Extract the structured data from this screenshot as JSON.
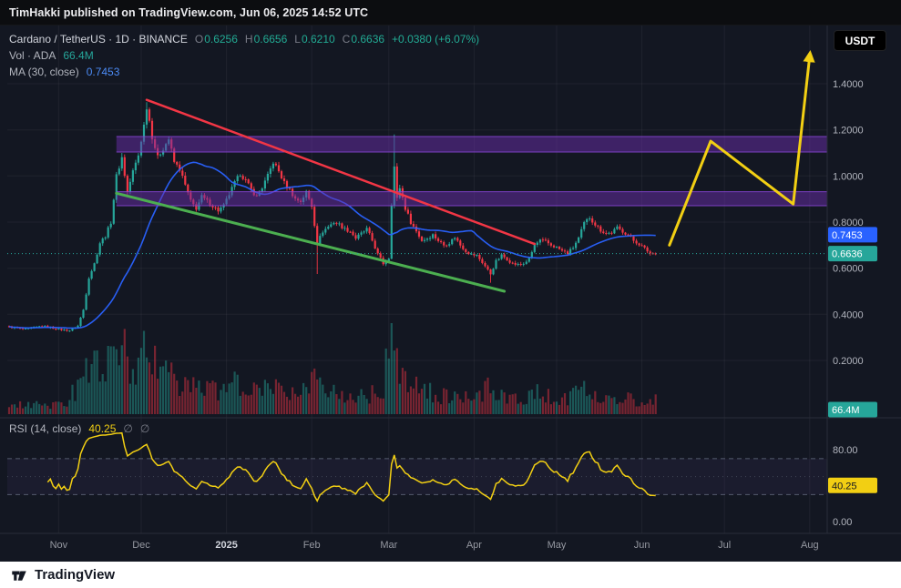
{
  "header": {
    "publisher_line": "TimHakki published on TradingView.com, Jun 06, 2025 14:52 UTC"
  },
  "toolbar": {
    "currency_button": "USDT"
  },
  "footer": {
    "brand": "TradingView"
  },
  "legend": {
    "symbol_line": "Cardano / TetherUS · 1D · BINANCE",
    "ohlc": {
      "o_label": "O",
      "o": "0.6256",
      "h_label": "H",
      "h": "0.6656",
      "l_label": "L",
      "l": "0.6210",
      "c_label": "C",
      "c": "0.6636",
      "change": "+0.0380 (+6.07%)"
    },
    "volume_label": "Vol · ADA",
    "volume_value": "66.4M",
    "ma_label": "MA (30, close)",
    "ma_value": "0.7453"
  },
  "rsi_legend": {
    "label": "RSI (14, close)",
    "value": "40.25",
    "empty_a": "∅",
    "empty_b": "∅"
  },
  "axis": {
    "badges": {
      "ma": "0.7453",
      "last": "0.6636",
      "volume": "66.4M",
      "rsi": "40.25"
    }
  },
  "colors": {
    "up": "#26a69a",
    "down": "#f23645",
    "ma_line": "#2962ff",
    "band_fill": "rgba(106,46,170,0.5)",
    "band_border": "#8b46d9",
    "projection_yellow": "#f2cf13",
    "rsi_line": "#f2cf13",
    "last_line": "#26a69a",
    "badge_ma_bg": "#2962ff",
    "badge_last_bg": "#26a69a",
    "badge_vol_bg": "#26a69a",
    "badge_rsi_bg": "#f2cf13",
    "grid": "rgba(135,139,150,0.10)",
    "axis_text": "#b2b5be",
    "month_text": "#9598a1",
    "year_text": "#d1d4dc",
    "rsi_guide": "#565b6e",
    "rsi_mid": "#3f4454",
    "rsi_zone": "rgba(126,87,194,0.08)",
    "sep": "#2a2e39"
  },
  "chart_data": {
    "type": "candlestick",
    "symbol": "Cardano / TetherUS",
    "interval": "1D",
    "exchange": "BINANCE",
    "ohlc_display": {
      "open": 0.6256,
      "high": 0.6656,
      "low": 0.621,
      "close": 0.6636,
      "change_abs": 0.038,
      "change_pct": 6.07
    },
    "last_price": 0.6636,
    "ma30_value": 0.7453,
    "rsi_value": 40.25,
    "volume_display": "66.4M",
    "ma_period": 30,
    "rsi_period": 14,
    "ylim": [
      0.2,
      1.66
    ],
    "price_gridlines": [
      0.2,
      0.4,
      0.6,
      0.8,
      1.0,
      1.2,
      1.4
    ],
    "candle_count": 236,
    "price_path": [
      [
        0,
        0.345
      ],
      [
        6,
        0.335
      ],
      [
        12,
        0.35
      ],
      [
        18,
        0.335
      ],
      [
        22,
        0.33
      ],
      [
        25,
        0.35
      ],
      [
        27,
        0.42
      ],
      [
        29,
        0.56
      ],
      [
        31,
        0.62
      ],
      [
        33,
        0.71
      ],
      [
        35,
        0.74
      ],
      [
        37,
        0.8
      ],
      [
        39,
        1.0
      ],
      [
        41,
        1.08
      ],
      [
        43,
        0.93
      ],
      [
        45,
        1.02
      ],
      [
        47,
        1.09
      ],
      [
        49,
        1.22
      ],
      [
        50,
        1.3
      ],
      [
        51,
        1.24
      ],
      [
        52,
        1.17
      ],
      [
        54,
        1.08
      ],
      [
        56,
        1.12
      ],
      [
        58,
        1.16
      ],
      [
        60,
        1.06
      ],
      [
        62,
        1.03
      ],
      [
        64,
        0.96
      ],
      [
        66,
        0.89
      ],
      [
        68,
        0.86
      ],
      [
        70,
        0.91
      ],
      [
        72,
        0.89
      ],
      [
        74,
        0.87
      ],
      [
        76,
        0.85
      ],
      [
        78,
        0.87
      ],
      [
        80,
        0.92
      ],
      [
        82,
        0.97
      ],
      [
        84,
        1.01
      ],
      [
        86,
        0.98
      ],
      [
        88,
        0.94
      ],
      [
        90,
        0.91
      ],
      [
        92,
        0.95
      ],
      [
        94,
        1.0
      ],
      [
        96,
        1.06
      ],
      [
        98,
        1.02
      ],
      [
        100,
        0.97
      ],
      [
        102,
        0.94
      ],
      [
        104,
        0.9
      ],
      [
        106,
        0.89
      ],
      [
        108,
        0.93
      ],
      [
        110,
        0.87
      ],
      [
        112,
        0.71
      ],
      [
        114,
        0.76
      ],
      [
        116,
        0.78
      ],
      [
        118,
        0.8
      ],
      [
        120,
        0.79
      ],
      [
        122,
        0.77
      ],
      [
        124,
        0.76
      ],
      [
        126,
        0.73
      ],
      [
        128,
        0.75
      ],
      [
        130,
        0.77
      ],
      [
        132,
        0.72
      ],
      [
        134,
        0.66
      ],
      [
        136,
        0.62
      ],
      [
        138,
        0.645
      ],
      [
        139,
        0.88
      ],
      [
        140,
        1.04
      ],
      [
        141,
        0.9
      ],
      [
        142,
        0.95
      ],
      [
        144,
        0.86
      ],
      [
        146,
        0.8
      ],
      [
        148,
        0.76
      ],
      [
        150,
        0.72
      ],
      [
        152,
        0.73
      ],
      [
        154,
        0.745
      ],
      [
        156,
        0.72
      ],
      [
        158,
        0.7
      ],
      [
        160,
        0.71
      ],
      [
        162,
        0.735
      ],
      [
        164,
        0.7
      ],
      [
        166,
        0.675
      ],
      [
        168,
        0.66
      ],
      [
        170,
        0.655
      ],
      [
        172,
        0.625
      ],
      [
        175,
        0.575
      ],
      [
        177,
        0.63
      ],
      [
        179,
        0.655
      ],
      [
        181,
        0.64
      ],
      [
        183,
        0.62
      ],
      [
        185,
        0.615
      ],
      [
        187,
        0.62
      ],
      [
        189,
        0.64
      ],
      [
        191,
        0.7
      ],
      [
        193,
        0.72
      ],
      [
        195,
        0.715
      ],
      [
        197,
        0.7
      ],
      [
        199,
        0.69
      ],
      [
        201,
        0.675
      ],
      [
        203,
        0.665
      ],
      [
        205,
        0.69
      ],
      [
        207,
        0.73
      ],
      [
        209,
        0.795
      ],
      [
        211,
        0.82
      ],
      [
        213,
        0.79
      ],
      [
        215,
        0.765
      ],
      [
        217,
        0.75
      ],
      [
        219,
        0.755
      ],
      [
        221,
        0.775
      ],
      [
        223,
        0.76
      ],
      [
        225,
        0.745
      ],
      [
        227,
        0.72
      ],
      [
        229,
        0.705
      ],
      [
        231,
        0.685
      ],
      [
        233,
        0.665
      ],
      [
        235,
        0.6636
      ]
    ],
    "wick_overrides": [
      {
        "i": 50,
        "high": 1.32
      },
      {
        "i": 41,
        "high": 1.1
      },
      {
        "i": 112,
        "low": 0.575
      },
      {
        "i": 140,
        "high": 1.18
      },
      {
        "i": 175,
        "low": 0.537
      }
    ],
    "volume_anchors": [
      [
        0,
        0.1
      ],
      [
        20,
        0.1
      ],
      [
        26,
        0.35
      ],
      [
        28,
        0.55
      ],
      [
        31,
        0.5
      ],
      [
        35,
        0.45
      ],
      [
        39,
        0.8
      ],
      [
        41,
        0.7
      ],
      [
        45,
        0.5
      ],
      [
        48,
        0.6
      ],
      [
        50,
        0.95
      ],
      [
        53,
        0.6
      ],
      [
        57,
        0.45
      ],
      [
        62,
        0.38
      ],
      [
        67,
        0.3
      ],
      [
        72,
        0.28
      ],
      [
        79,
        0.3
      ],
      [
        84,
        0.35
      ],
      [
        90,
        0.25
      ],
      [
        96,
        0.3
      ],
      [
        102,
        0.22
      ],
      [
        108,
        0.25
      ],
      [
        112,
        0.55
      ],
      [
        115,
        0.3
      ],
      [
        120,
        0.2
      ],
      [
        126,
        0.18
      ],
      [
        132,
        0.22
      ],
      [
        136,
        0.28
      ],
      [
        139,
        1.0
      ],
      [
        141,
        0.75
      ],
      [
        143,
        0.5
      ],
      [
        147,
        0.35
      ],
      [
        152,
        0.25
      ],
      [
        158,
        0.2
      ],
      [
        164,
        0.18
      ],
      [
        170,
        0.22
      ],
      [
        175,
        0.3
      ],
      [
        180,
        0.18
      ],
      [
        186,
        0.15
      ],
      [
        191,
        0.28
      ],
      [
        196,
        0.2
      ],
      [
        202,
        0.16
      ],
      [
        209,
        0.3
      ],
      [
        213,
        0.22
      ],
      [
        219,
        0.18
      ],
      [
        225,
        0.2
      ],
      [
        229,
        0.16
      ],
      [
        233,
        0.18
      ],
      [
        235,
        0.15
      ]
    ],
    "bands": [
      {
        "name": "upper-resistance-zone",
        "price_from": 1.104,
        "price_to": 1.171,
        "start_idx": 39
      },
      {
        "name": "lower-support-zone",
        "price_from": 0.871,
        "price_to": 0.932,
        "start_idx": 39
      }
    ],
    "trendlines": [
      {
        "name": "descending-trendline",
        "color": "#f23645",
        "width": 2.5,
        "from": [
          50,
          1.33
        ],
        "to": [
          191,
          0.705
        ]
      },
      {
        "name": "rising-support-trendline",
        "color": "#4caf50",
        "width": 3,
        "from": [
          39,
          0.925
        ],
        "to": [
          180,
          0.5
        ]
      }
    ],
    "projection": {
      "name": "forecast-path",
      "color": "#f2cf13",
      "width": 3,
      "points": [
        [
          240,
          0.7
        ],
        [
          255,
          1.151
        ],
        [
          285,
          0.878
        ],
        [
          291,
          1.52
        ]
      ]
    },
    "rsi_guides": {
      "upper": 70,
      "lower": 30,
      "middle": 50
    },
    "time_ticks": [
      {
        "label": "Nov",
        "idx": 18
      },
      {
        "label": "Dec",
        "idx": 48
      },
      {
        "label": "2025",
        "idx": 79,
        "year": true
      },
      {
        "label": "Feb",
        "idx": 110
      },
      {
        "label": "Mar",
        "idx": 138
      },
      {
        "label": "Apr",
        "idx": 169
      },
      {
        "label": "May",
        "idx": 199
      },
      {
        "label": "Jun",
        "idx": 230
      },
      {
        "label": "Jul",
        "idx": 260
      },
      {
        "label": "Aug",
        "idx": 291
      }
    ],
    "price_ticks": [
      {
        "label": "1.4000",
        "value": 1.4
      },
      {
        "label": "1.2000",
        "value": 1.2
      },
      {
        "label": "1.0000",
        "value": 1.0
      },
      {
        "label": "0.8000",
        "value": 0.8
      },
      {
        "label": "0.6000",
        "value": 0.6
      },
      {
        "label": "0.4000",
        "value": 0.4
      },
      {
        "label": "0.2000",
        "value": 0.2
      }
    ],
    "rsi_ticks": [
      {
        "label": "80.00",
        "value": 80
      },
      {
        "label": "0.00",
        "value": 0
      }
    ]
  }
}
